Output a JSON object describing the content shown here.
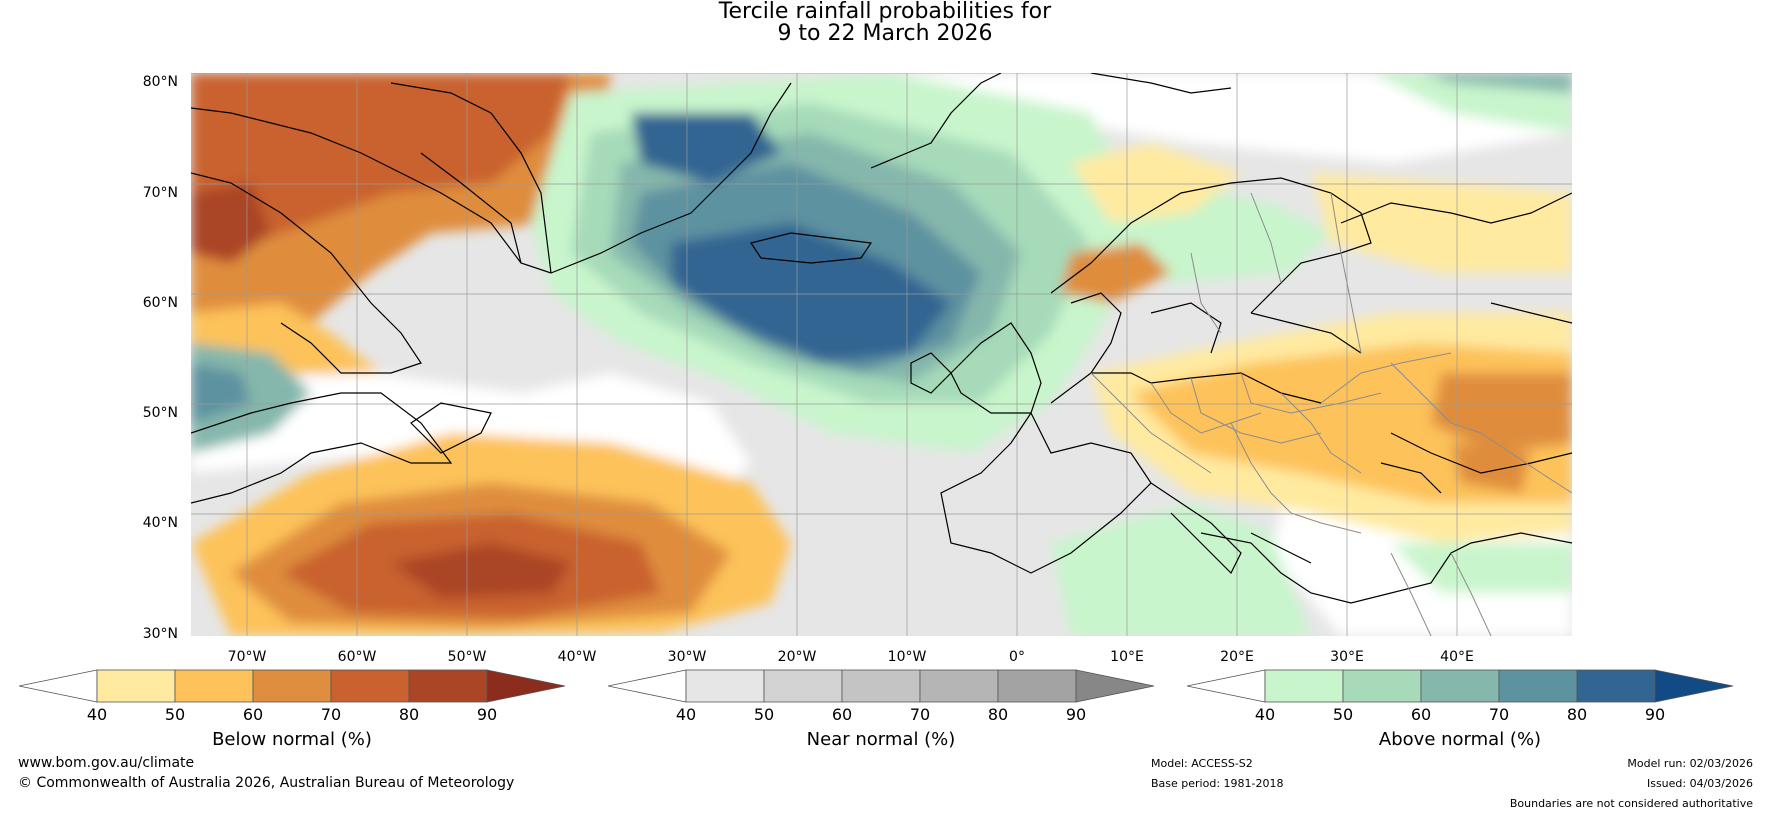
{
  "title": {
    "line1": "Tercile rainfall probabilities for",
    "line2": "9 to 22 March 2026"
  },
  "map": {
    "lat_labels": [
      "80°N",
      "70°N",
      "60°N",
      "50°N",
      "40°N",
      "30°N"
    ],
    "lon_labels": [
      "70°W",
      "60°W",
      "50°W",
      "40°W",
      "30°W",
      "20°W",
      "10°W",
      "0°",
      "10°E",
      "20°E",
      "30°E",
      "40°E"
    ]
  },
  "colorbars": [
    {
      "name": "Below normal (%)",
      "ticks": [
        "40",
        "50",
        "60",
        "70",
        "80",
        "90"
      ],
      "colors": [
        "#ffffff",
        "#ffeaa0",
        "#fdc25a",
        "#df8d3e",
        "#c9622f",
        "#aa4526",
        "#8c2c1c"
      ]
    },
    {
      "name": "Near normal (%)",
      "ticks": [
        "40",
        "50",
        "60",
        "70",
        "80",
        "90"
      ],
      "colors": [
        "#ffffff",
        "#e6e6e6",
        "#d3d3d3",
        "#c4c4c4",
        "#b5b5b5",
        "#a3a3a3",
        "#878787"
      ]
    },
    {
      "name": "Above normal (%)",
      "ticks": [
        "40",
        "50",
        "60",
        "70",
        "80",
        "90"
      ],
      "colors": [
        "#ffffff",
        "#c8f5cc",
        "#a6dab9",
        "#85b7ac",
        "#5d92a0",
        "#326592",
        "#124a86"
      ]
    }
  ],
  "footer": {
    "website": "www.bom.gov.au/climate",
    "copyright": "© Commonwealth of Australia 2026, Australian Bureau of Meteorology",
    "model": "Model: ACCESS-S2",
    "base_period": "Base period: 1981-2018",
    "model_run": "Model run: 02/03/2026",
    "issued": "Issued: 04/03/2026",
    "disclaimer": "Boundaries are not considered authoritative"
  }
}
